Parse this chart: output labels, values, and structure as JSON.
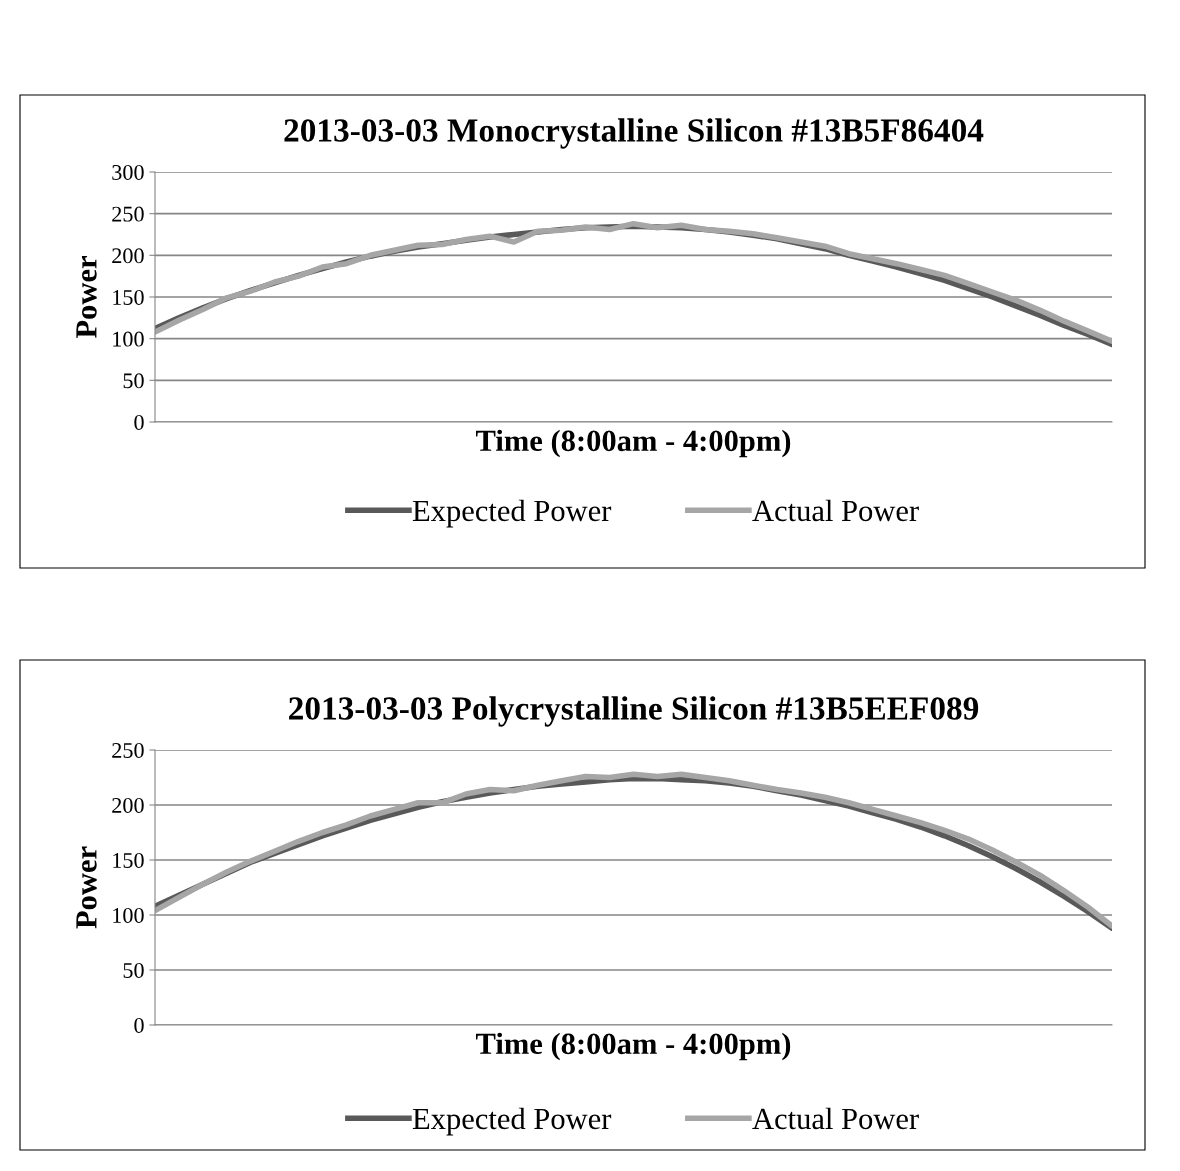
{
  "chart_data": [
    {
      "type": "line",
      "title": "2013-03-03 Monocrystalline Silicon #13B5F86404",
      "xlabel": "Time (8:00am - 4:00pm)",
      "ylabel": "Power",
      "ylim": [
        0,
        300
      ],
      "yticks": [
        0,
        50,
        100,
        150,
        200,
        250,
        300
      ],
      "grid": "y",
      "legend": "bottom",
      "marker": "none",
      "line_style": "solid",
      "categories": [
        null,
        null,
        null,
        null,
        null,
        null,
        null,
        null,
        null,
        null,
        null,
        null,
        null,
        null,
        null,
        null,
        null,
        null,
        null,
        null,
        null,
        null,
        null,
        null,
        null,
        null,
        null,
        null,
        null,
        null,
        null,
        null,
        null,
        null,
        null,
        null,
        null,
        null,
        null,
        null,
        null
      ],
      "series": [
        {
          "name": "Expected Power",
          "color": "#595959",
          "values": [
            112,
            125,
            137,
            148,
            158,
            167,
            176,
            184,
            192,
            199,
            205,
            210,
            214,
            218,
            222,
            225,
            228,
            231,
            233,
            234,
            235,
            234,
            233,
            231,
            228,
            224,
            220,
            214,
            208,
            200,
            193,
            186,
            178,
            170,
            160,
            150,
            139,
            128,
            116,
            105,
            93
          ]
        },
        {
          "name": "Actual Power",
          "color": "#a6a6a6",
          "values": [
            108,
            122,
            135,
            149,
            157,
            168,
            175,
            186,
            190,
            200,
            206,
            212,
            213,
            219,
            223,
            216,
            229,
            230,
            234,
            231,
            238,
            233,
            236,
            231,
            229,
            226,
            221,
            216,
            211,
            202,
            196,
            190,
            183,
            176,
            166,
            156,
            146,
            134,
            121,
            109,
            97
          ]
        }
      ]
    },
    {
      "type": "line",
      "title": "2013-03-03 Polycrystalline Silicon #13B5EEF089",
      "xlabel": "Time (8:00am - 4:00pm)",
      "ylabel": "Power",
      "ylim": [
        0,
        250
      ],
      "yticks": [
        0,
        50,
        100,
        150,
        200,
        250
      ],
      "grid": "y",
      "legend": "bottom",
      "marker": "none",
      "line_style": "solid",
      "categories": [
        null,
        null,
        null,
        null,
        null,
        null,
        null,
        null,
        null,
        null,
        null,
        null,
        null,
        null,
        null,
        null,
        null,
        null,
        null,
        null,
        null,
        null,
        null,
        null,
        null,
        null,
        null,
        null,
        null,
        null,
        null,
        null,
        null,
        null,
        null,
        null,
        null,
        null,
        null,
        null,
        null
      ],
      "series": [
        {
          "name": "Expected Power",
          "color": "#595959",
          "values": [
            108,
            118,
            128,
            138,
            148,
            156,
            164,
            172,
            179,
            186,
            192,
            198,
            203,
            207,
            211,
            214,
            217,
            219,
            221,
            223,
            224,
            224,
            223,
            222,
            220,
            217,
            213,
            209,
            204,
            199,
            193,
            187,
            180,
            172,
            163,
            153,
            142,
            130,
            117,
            103,
            88
          ]
        },
        {
          "name": "Actual Power",
          "color": "#a6a6a6",
          "values": [
            104,
            116,
            128,
            139,
            149,
            158,
            167,
            175,
            182,
            190,
            196,
            202,
            202,
            210,
            214,
            213,
            218,
            222,
            226,
            225,
            228,
            226,
            228,
            225,
            222,
            218,
            214,
            211,
            207,
            202,
            196,
            190,
            184,
            177,
            169,
            159,
            148,
            136,
            122,
            107,
            90
          ]
        }
      ]
    }
  ]
}
